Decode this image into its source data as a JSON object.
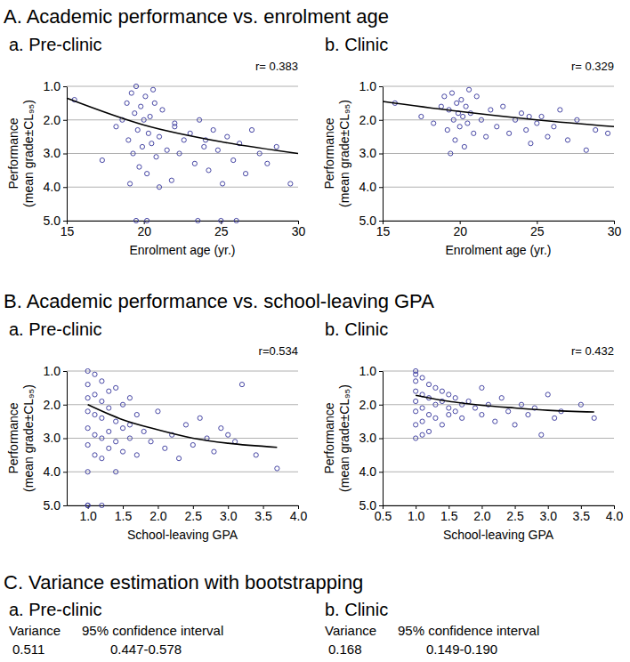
{
  "sections": [
    "A. Academic performance vs. enrolment age",
    "B. Academic performance vs. school-leaving GPA",
    "C. Variance estimation with bootstrapping"
  ],
  "chart_data": [
    {
      "type": "scatter",
      "title": "a. Pre-clinic",
      "annotation": "r= 0.383",
      "xlabel": "Enrolment age (yr.)",
      "ylabel": [
        "Performance",
        "(mean grade±CL₉₅)"
      ],
      "xlim": [
        15,
        30
      ],
      "xticks": [
        15,
        20,
        25,
        30
      ],
      "ylim": [
        5,
        1
      ],
      "yticks": [
        {
          "value": 1,
          "label": "1.0"
        },
        {
          "value": 2,
          "label": "2.0"
        },
        {
          "value": 3,
          "label": "3.0"
        },
        {
          "value": 4,
          "label": "4.0"
        },
        {
          "value": 5,
          "label": "5.0"
        }
      ],
      "grid": true,
      "series": [
        {
          "type": "scatter",
          "color": "#33339a",
          "marker": "circle-open",
          "x": [
            15.5,
            17.3,
            18.2,
            18.6,
            18.9,
            19.0,
            19.2,
            19.3,
            19.4,
            19.5,
            19.6,
            19.7,
            19.8,
            19.9,
            20.0,
            20.1,
            20.2,
            20.3,
            20.4,
            20.5,
            20.6,
            20.8,
            21.0,
            21.2,
            21.5,
            21.8,
            22.0,
            22.3,
            22.6,
            23.0,
            23.3,
            23.6,
            23.9,
            24.2,
            24.5,
            24.8,
            25.1,
            25.4,
            25.8,
            26.2,
            26.6,
            27.0,
            27.5,
            28.0,
            28.6,
            29.5,
            19.5,
            20.2,
            23.5,
            25.0,
            26.0,
            21.0,
            19.1,
            20.7,
            24.0,
            22.0
          ],
          "values": [
            1.4,
            3.2,
            2.2,
            2.0,
            1.5,
            2.6,
            1.2,
            3.0,
            1.8,
            1.0,
            2.3,
            3.4,
            1.6,
            2.8,
            2.0,
            1.3,
            3.6,
            2.4,
            1.9,
            2.7,
            1.1,
            3.1,
            2.5,
            1.7,
            2.9,
            3.8,
            2.2,
            3.0,
            2.6,
            2.4,
            3.3,
            2.0,
            2.8,
            3.5,
            2.3,
            2.9,
            3.9,
            2.5,
            3.2,
            2.7,
            3.6,
            2.3,
            3.0,
            3.3,
            2.8,
            3.9,
            5.0,
            5.0,
            5.0,
            5.0,
            5.0,
            4.0,
            3.9,
            1.5,
            2.6,
            2.1
          ]
        },
        {
          "type": "line",
          "color": "#000000",
          "line_style": "solid",
          "x": [
            15,
            20,
            25,
            30
          ],
          "values": [
            1.35,
            2.15,
            2.65,
            3.0
          ]
        }
      ]
    },
    {
      "type": "scatter",
      "title": "b. Clinic",
      "annotation": "r= 0.329",
      "xlabel": "Enrolment age (yr.)",
      "ylabel": [
        "Performance",
        "(mean grade±CL₉₅)"
      ],
      "xlim": [
        15,
        30
      ],
      "xticks": [
        15,
        20,
        25,
        30
      ],
      "ylim": [
        5,
        1
      ],
      "yticks": [
        {
          "value": 1,
          "label": "1.0"
        },
        {
          "value": 2,
          "label": "2.0"
        },
        {
          "value": 3,
          "label": "3.0"
        },
        {
          "value": 4,
          "label": "4.0"
        },
        {
          "value": 5,
          "label": "5.0"
        }
      ],
      "grid": true,
      "series": [
        {
          "type": "scatter",
          "color": "#33339a",
          "marker": "circle-open",
          "x": [
            15.8,
            17.5,
            18.3,
            18.8,
            19.0,
            19.2,
            19.3,
            19.5,
            19.6,
            19.7,
            19.8,
            19.9,
            20.0,
            20.1,
            20.2,
            20.3,
            20.4,
            20.5,
            20.7,
            20.9,
            21.1,
            21.4,
            21.7,
            22.0,
            22.4,
            22.8,
            23.2,
            23.6,
            24.0,
            24.3,
            24.6,
            25.0,
            25.3,
            25.7,
            26.1,
            26.5,
            27.0,
            27.6,
            28.2,
            28.8,
            29.6,
            19.4,
            20.6,
            24.5
          ],
          "values": [
            1.5,
            1.9,
            2.1,
            1.6,
            1.3,
            2.3,
            1.7,
            1.2,
            2.0,
            2.6,
            1.5,
            1.8,
            2.2,
            1.4,
            1.9,
            2.8,
            1.6,
            2.1,
            1.8,
            2.4,
            1.3,
            2.0,
            2.5,
            1.7,
            2.2,
            1.6,
            2.4,
            2.0,
            1.8,
            2.3,
            2.7,
            2.1,
            1.9,
            2.5,
            2.2,
            1.7,
            2.6,
            2.0,
            2.9,
            2.3,
            2.4,
            3.0,
            1.1,
            1.9
          ]
        },
        {
          "type": "line",
          "color": "#000000",
          "line_style": "solid",
          "x": [
            15,
            20,
            25,
            30
          ],
          "values": [
            1.45,
            1.75,
            2.0,
            2.2
          ]
        }
      ]
    },
    {
      "type": "scatter",
      "title": "a. Pre-clinic",
      "annotation": "r=0.534",
      "xlabel": "School-leaving GPA",
      "ylabel": [
        "Performance",
        "(mean grade±CL₉₅)"
      ],
      "xlim": [
        0.7,
        4.0
      ],
      "xticks": [
        {
          "value": 1,
          "label": "1.0"
        },
        1.5,
        {
          "value": 2,
          "label": "2.0"
        },
        2.5,
        {
          "value": 3,
          "label": "3.0"
        },
        3.5,
        {
          "value": 4,
          "label": "4.0"
        }
      ],
      "ylim": [
        5,
        1
      ],
      "yticks": [
        {
          "value": 1,
          "label": "1.0"
        },
        {
          "value": 2,
          "label": "2.0"
        },
        {
          "value": 3,
          "label": "3.0"
        },
        {
          "value": 4,
          "label": "4.0"
        },
        {
          "value": 5,
          "label": "5.0"
        }
      ],
      "grid": true,
      "series": [
        {
          "type": "scatter",
          "color": "#33339a",
          "marker": "circle-open",
          "x": [
            1.0,
            1.0,
            1.0,
            1.0,
            1.0,
            1.0,
            1.0,
            1.0,
            1.1,
            1.1,
            1.1,
            1.1,
            1.1,
            1.2,
            1.2,
            1.2,
            1.2,
            1.2,
            1.3,
            1.3,
            1.3,
            1.3,
            1.4,
            1.4,
            1.4,
            1.4,
            1.5,
            1.5,
            1.5,
            1.6,
            1.6,
            1.6,
            1.7,
            1.7,
            1.8,
            1.9,
            2.0,
            2.1,
            2.2,
            2.3,
            2.4,
            2.5,
            2.6,
            2.7,
            2.8,
            2.9,
            3.0,
            3.1,
            3.2,
            3.4,
            3.7,
            1.0,
            1.2
          ],
          "values": [
            1.0,
            1.4,
            1.8,
            2.2,
            2.7,
            3.2,
            4.0,
            5.0,
            1.1,
            1.7,
            2.3,
            2.9,
            3.5,
            1.3,
            1.9,
            2.4,
            3.0,
            3.6,
            1.6,
            2.1,
            2.8,
            3.3,
            1.5,
            2.5,
            3.1,
            4.0,
            2.0,
            2.7,
            3.4,
            1.8,
            2.6,
            3.0,
            2.3,
            3.5,
            2.8,
            3.1,
            2.2,
            3.3,
            2.9,
            3.6,
            2.6,
            3.2,
            2.4,
            3.0,
            3.4,
            2.7,
            2.9,
            3.1,
            1.4,
            3.5,
            3.9,
            5.0,
            5.0
          ]
        },
        {
          "type": "line",
          "color": "#000000",
          "line_style": "solid",
          "x": [
            1.0,
            1.5,
            2.0,
            2.5,
            3.0,
            3.7
          ],
          "values": [
            2.0,
            2.45,
            2.75,
            3.0,
            3.15,
            3.27
          ]
        }
      ]
    },
    {
      "type": "scatter",
      "title": "b. Clinic",
      "annotation": "r= 0.432",
      "xlabel": "School-leaving GPA",
      "ylabel": [
        "Performance",
        "(mean grade±CL₉₅)"
      ],
      "xlim": [
        0.5,
        4.0
      ],
      "xticks": [
        0.5,
        {
          "value": 1,
          "label": "1.0"
        },
        1.5,
        {
          "value": 2,
          "label": "2.0"
        },
        2.5,
        {
          "value": 3,
          "label": "3.0"
        },
        3.5,
        {
          "value": 4,
          "label": "4.0"
        }
      ],
      "ylim": [
        5,
        1
      ],
      "yticks": [
        {
          "value": 1,
          "label": "1.0"
        },
        {
          "value": 2,
          "label": "2.0"
        },
        {
          "value": 3,
          "label": "3.0"
        },
        {
          "value": 4,
          "label": "4.0"
        },
        {
          "value": 5,
          "label": "5.0"
        }
      ],
      "grid": true,
      "series": [
        {
          "type": "scatter",
          "color": "#33339a",
          "marker": "circle-open",
          "x": [
            1.0,
            1.0,
            1.0,
            1.0,
            1.0,
            1.0,
            1.0,
            1.1,
            1.1,
            1.1,
            1.1,
            1.2,
            1.2,
            1.2,
            1.2,
            1.3,
            1.3,
            1.3,
            1.4,
            1.4,
            1.4,
            1.5,
            1.5,
            1.5,
            1.6,
            1.6,
            1.7,
            1.7,
            1.8,
            1.9,
            2.0,
            2.1,
            2.2,
            2.3,
            2.4,
            2.5,
            2.6,
            2.7,
            2.8,
            2.9,
            3.0,
            3.1,
            3.2,
            3.5,
            3.7,
            1.0,
            1.1,
            2.0
          ],
          "values": [
            1.0,
            1.3,
            1.6,
            1.9,
            2.2,
            2.6,
            3.0,
            1.2,
            1.7,
            2.1,
            2.5,
            1.4,
            1.8,
            2.3,
            2.8,
            1.5,
            2.0,
            2.4,
            1.6,
            1.9,
            2.6,
            1.7,
            2.1,
            2.3,
            1.8,
            2.2,
            2.0,
            2.4,
            1.9,
            2.1,
            2.3,
            2.0,
            2.5,
            1.8,
            2.2,
            2.6,
            2.0,
            2.3,
            2.1,
            2.9,
            1.7,
            2.4,
            2.2,
            2.0,
            2.4,
            1.1,
            2.9,
            1.5
          ]
        },
        {
          "type": "line",
          "color": "#000000",
          "line_style": "solid",
          "x": [
            1.0,
            1.5,
            2.0,
            2.5,
            3.0,
            3.7
          ],
          "values": [
            1.72,
            1.9,
            2.02,
            2.1,
            2.17,
            2.22
          ]
        }
      ]
    }
  ],
  "variance_estimation": [
    {
      "title": "a. Pre-clinic",
      "headers": [
        "Variance",
        "95% confidence interval"
      ],
      "values": [
        "0.511",
        "0.447-0.578"
      ]
    },
    {
      "title": "b. Clinic",
      "headers": [
        "Variance",
        "95% confidence interval"
      ],
      "values": [
        "0.168",
        "0.149-0.190"
      ]
    }
  ]
}
